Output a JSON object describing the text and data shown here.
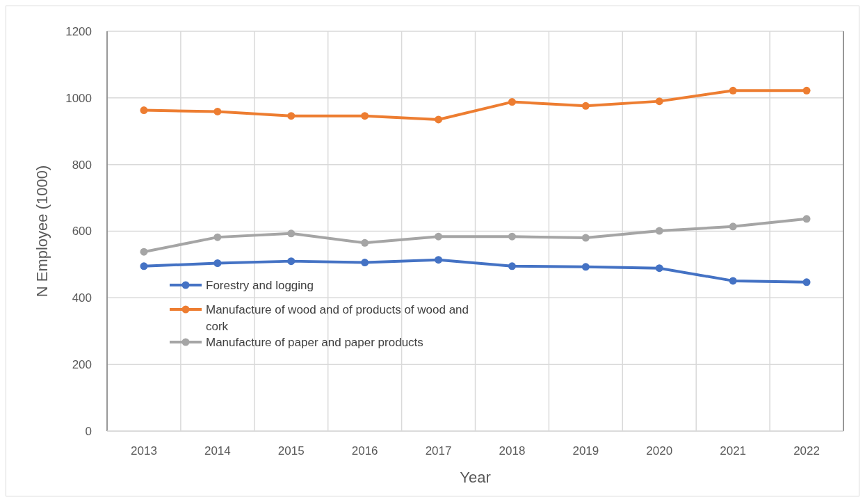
{
  "chart_data": {
    "type": "line",
    "xlabel": "Year",
    "ylabel": "N Employee  (1000)",
    "categories": [
      "2013",
      "2014",
      "2015",
      "2016",
      "2017",
      "2018",
      "2019",
      "2020",
      "2021",
      "2022"
    ],
    "series": [
      {
        "name": "Forestry and logging",
        "color": "#4472c4",
        "values": [
          495,
          504,
          510,
          506,
          514,
          495,
          493,
          489,
          451,
          447
        ]
      },
      {
        "name": "Manufacture of wood and of products of wood and cork",
        "color": "#ed7d31",
        "values": [
          963,
          959,
          946,
          946,
          935,
          988,
          976,
          990,
          1022,
          1022
        ]
      },
      {
        "name": "Manufacture of paper and paper products",
        "color": "#a5a5a5",
        "values": [
          538,
          582,
          593,
          565,
          584,
          584,
          580,
          601,
          614,
          637
        ]
      }
    ],
    "ylim": [
      0,
      1200
    ],
    "yticks": [
      0,
      200,
      400,
      600,
      800,
      1000,
      1200
    ],
    "grid": true,
    "legend": "bottom left",
    "marker": "circle",
    "line_style": "solid"
  }
}
